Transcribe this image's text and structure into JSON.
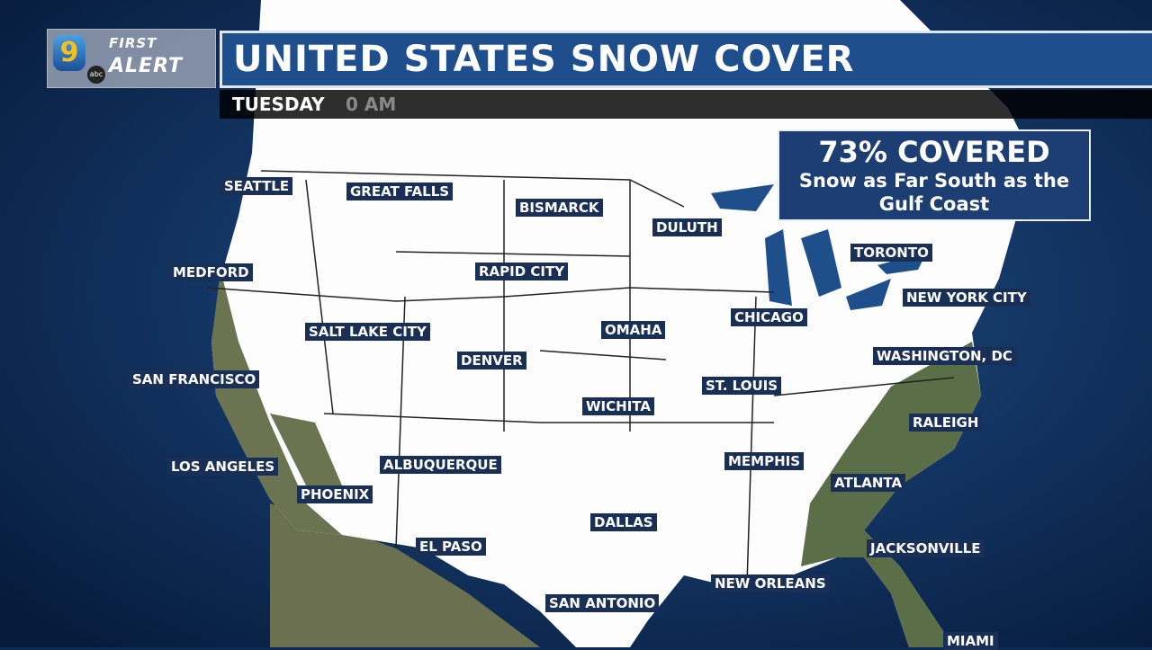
{
  "logo": {
    "brand": "9 abc FIRST ALERT",
    "channel": "9",
    "network": "abc",
    "first": "FIRST",
    "alert": "ALERT"
  },
  "title": "UNITED STATES SNOW COVER",
  "subtitle": {
    "day": "TUESDAY",
    "time": "0 AM"
  },
  "info": {
    "headline": "73% COVERED",
    "line1": "Snow as Far South as the",
    "line2": "Gulf Coast"
  },
  "colors": {
    "ocean": "#0d2a55",
    "snow": "#ffffff",
    "title_bar": "#1f4e8c",
    "label_bg": "#1a2f55",
    "bare_ground": "#5a6e48"
  },
  "cities": [
    "SEATTLE",
    "GREAT FALLS",
    "BISMARCK",
    "DULUTH",
    "MEDFORD",
    "RAPID CITY",
    "TORONTO",
    "NEW YORK CITY",
    "CHICAGO",
    "SALT LAKE CITY",
    "OMAHA",
    "DENVER",
    "WASHINGTON, DC",
    "SAN FRANCISCO",
    "ST. LOUIS",
    "WICHITA",
    "RALEIGH",
    "MEMPHIS",
    "LOS ANGELES",
    "ALBUQUERQUE",
    "ATLANTA",
    "PHOENIX",
    "DALLAS",
    "EL PASO",
    "JACKSONVILLE",
    "NEW ORLEANS",
    "SAN ANTONIO",
    "MIAMI"
  ]
}
